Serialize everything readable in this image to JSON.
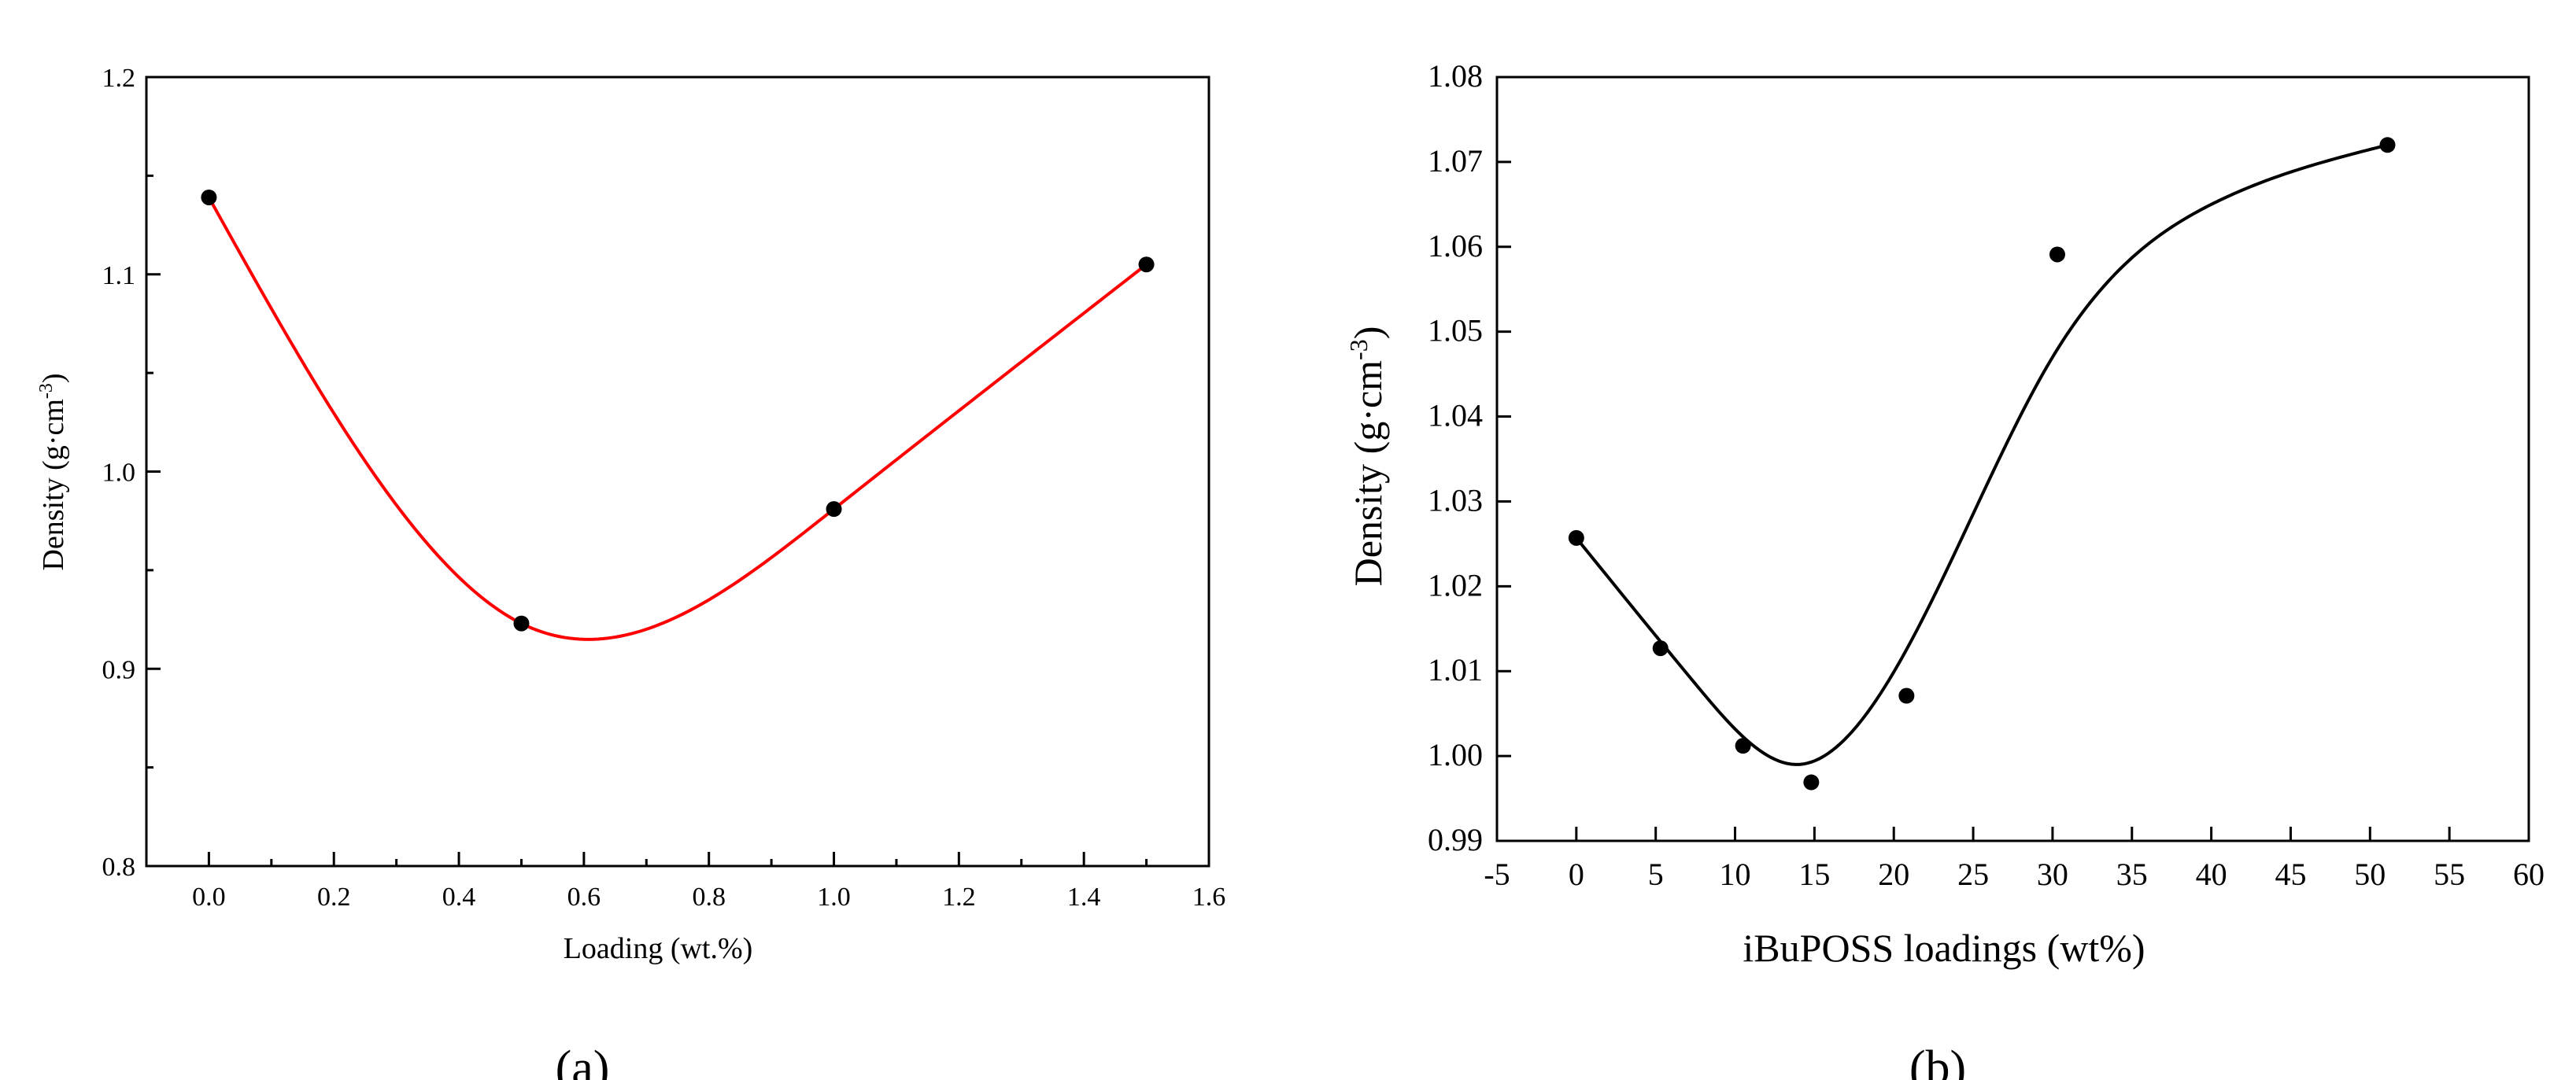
{
  "chart_data": [
    {
      "panel": "(a)",
      "type": "scatter",
      "xlabel": "Loading (wt.%)",
      "ylabel": "Density (g·cm",
      "ylabel_sup": "-3",
      "ylabel_close": ")",
      "xlim": [
        -0.1,
        1.6
      ],
      "ylim": [
        0.8,
        1.2
      ],
      "xticks": [
        0.0,
        0.2,
        0.4,
        0.6,
        0.8,
        1.0,
        1.2,
        1.4,
        1.6
      ],
      "xtick_labels": [
        "0.0",
        "0.2",
        "0.4",
        "0.6",
        "0.8",
        "1.0",
        "1.2",
        "1.4",
        "1.6"
      ],
      "yticks": [
        0.8,
        0.9,
        1.0,
        1.1,
        1.2
      ],
      "ytick_labels": [
        "0.8",
        "0.9",
        "1.0",
        "1.1",
        "1.2"
      ],
      "grid": false,
      "points": [
        {
          "x": 0.0,
          "y": 1.139
        },
        {
          "x": 0.5,
          "y": 0.923
        },
        {
          "x": 1.0,
          "y": 0.981
        },
        {
          "x": 1.5,
          "y": 1.105
        }
      ],
      "fit_curve_color": "#ff0000",
      "marker_color": "#000000"
    },
    {
      "panel": "(b)",
      "type": "scatter",
      "xlabel": "iBuPOSS loadings (wt%)",
      "ylabel": "Density (g·cm",
      "ylabel_sup": "-3",
      "ylabel_close": ")",
      "xlim": [
        -5,
        60
      ],
      "ylim": [
        0.99,
        1.08
      ],
      "xticks": [
        -5,
        0,
        5,
        10,
        15,
        20,
        25,
        30,
        35,
        40,
        45,
        50,
        55,
        60
      ],
      "xtick_labels": [
        "-5",
        "0",
        "5",
        "10",
        "15",
        "20",
        "25",
        "30",
        "35",
        "40",
        "45",
        "50",
        "55",
        "60"
      ],
      "yticks": [
        0.99,
        1.0,
        1.01,
        1.02,
        1.03,
        1.04,
        1.05,
        1.06,
        1.07,
        1.08
      ],
      "ytick_labels": [
        "0.99",
        "1.00",
        "1.01",
        "1.02",
        "1.03",
        "1.04",
        "1.05",
        "1.06",
        "1.07",
        "1.08"
      ],
      "grid": false,
      "points": [
        {
          "x": 0.0,
          "y": 1.0257
        },
        {
          "x": 5.3,
          "y": 1.0127
        },
        {
          "x": 10.5,
          "y": 1.0012
        },
        {
          "x": 14.8,
          "y": 0.9969
        },
        {
          "x": 20.8,
          "y": 1.0071
        },
        {
          "x": 30.3,
          "y": 1.0591
        },
        {
          "x": 51.1,
          "y": 1.072
        }
      ],
      "fit_curve_color": "#000000",
      "marker_color": "#000000"
    }
  ]
}
